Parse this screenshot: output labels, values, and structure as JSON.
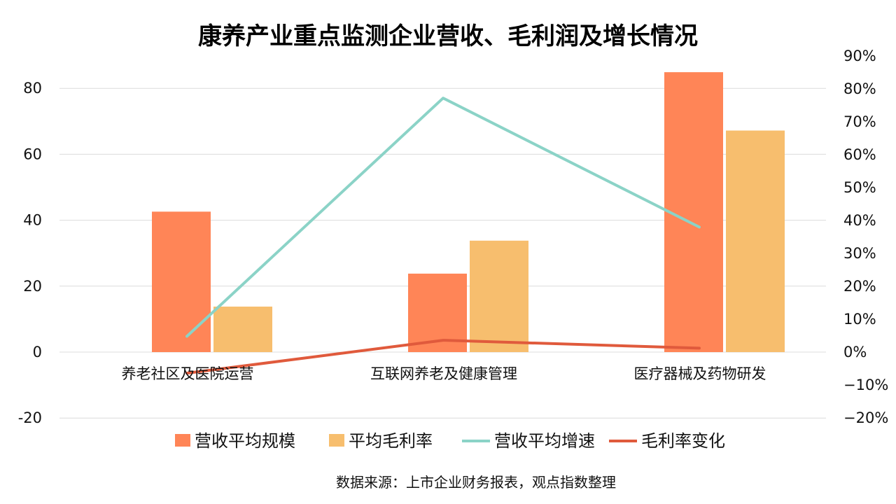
{
  "chart_data": {
    "type": "bar",
    "title": "康养产业重点监测企业营收、毛利润及增长情况",
    "categories": [
      "养老社区及医院运营",
      "互联网养老及健康管理",
      "医疗器械及药物研发"
    ],
    "series": [
      {
        "name": "营收平均规模",
        "kind": "bar",
        "axis": "left",
        "color": "#FF8557",
        "values": [
          42.6,
          23.8,
          84.9
        ]
      },
      {
        "name": "平均毛利率",
        "kind": "bar",
        "axis": "left",
        "color": "#F7BE6E",
        "values": [
          13.8,
          33.8,
          67.2
        ]
      },
      {
        "name": "营收平均增速",
        "kind": "line",
        "axis": "right",
        "color": "#8BD3C7",
        "values": [
          4.8,
          77.2,
          38.0
        ]
      },
      {
        "name": "毛利率变化",
        "kind": "line",
        "axis": "right",
        "color": "#E05A3C",
        "values": [
          -6.4,
          3.6,
          1.2
        ]
      }
    ],
    "yleft": {
      "min": -20,
      "max": 80,
      "ticks": [
        -20,
        0,
        20,
        40,
        60,
        80
      ]
    },
    "yright": {
      "min": -20,
      "max": 90,
      "ticks": [
        -20,
        -10,
        0,
        10,
        20,
        30,
        40,
        50,
        60,
        70,
        80,
        90
      ],
      "format": "percent"
    },
    "grid": true,
    "legend": "bottom",
    "source": "数据来源：上市企业财务报表，观点指数整理"
  }
}
